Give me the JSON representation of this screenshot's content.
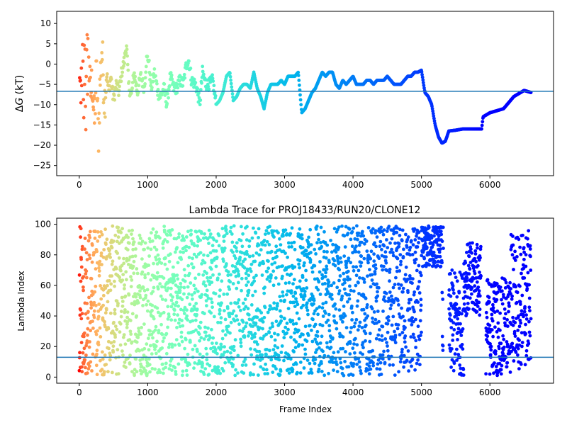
{
  "figure": {
    "background": "#ffffff",
    "colormap": "rainbow"
  },
  "chart_data": [
    {
      "type": "scatter",
      "title": "",
      "xlabel": "",
      "ylabel": "ΔG (kT)",
      "ylabel_italic_part": "G",
      "ylabel_prefix": "Δ",
      "ylabel_suffix": " (kT)",
      "xlim": [
        -330,
        6930
      ],
      "ylim": [
        -27.5,
        13
      ],
      "xticks": [
        0,
        1000,
        2000,
        3000,
        4000,
        5000,
        6000
      ],
      "yticks": [
        10,
        5,
        0,
        -5,
        -10,
        -15,
        -20,
        -25
      ],
      "hline": {
        "y": -6.7,
        "color": "#1f77b4"
      },
      "color_by": "frame index (red = early, purple = late)",
      "keypoints": [
        [
          0,
          11
        ],
        [
          20,
          -20
        ],
        [
          40,
          9
        ],
        [
          60,
          -15
        ],
        [
          80,
          5
        ],
        [
          100,
          -12
        ],
        [
          130,
          10
        ],
        [
          160,
          -8
        ],
        [
          190,
          -4
        ],
        [
          220,
          -15
        ],
        [
          250,
          -2
        ],
        [
          280,
          -18
        ],
        [
          300,
          -6
        ],
        [
          330,
          4
        ],
        [
          370,
          -9
        ],
        [
          400,
          -2
        ],
        [
          430,
          -7
        ],
        [
          460,
          -3
        ],
        [
          500,
          -9
        ],
        [
          540,
          -5
        ],
        [
          580,
          -7
        ],
        [
          620,
          -2
        ],
        [
          660,
          1
        ],
        [
          690,
          5
        ],
        [
          720,
          -5
        ],
        [
          760,
          -8
        ],
        [
          800,
          -2
        ],
        [
          850,
          -7
        ],
        [
          900,
          -3
        ],
        [
          950,
          -6
        ],
        [
          980,
          1
        ],
        [
          1010,
          1.5
        ],
        [
          1050,
          -6
        ],
        [
          1100,
          -2
        ],
        [
          1150,
          -7
        ],
        [
          1180,
          -8
        ],
        [
          1210,
          -7
        ],
        [
          1240,
          -6
        ],
        [
          1280,
          -10
        ],
        [
          1330,
          -3
        ],
        [
          1380,
          -6
        ],
        [
          1420,
          -6
        ],
        [
          1470,
          -4
        ],
        [
          1520,
          -5
        ],
        [
          1560,
          -0.5
        ],
        [
          1600,
          1
        ],
        [
          1640,
          -4
        ],
        [
          1700,
          -5
        ],
        [
          1730,
          -7
        ],
        [
          1760,
          -10
        ],
        [
          1800,
          -2
        ],
        [
          1850,
          -5
        ],
        [
          1900,
          -5
        ],
        [
          1950,
          -4
        ],
        [
          2000,
          -10
        ],
        [
          2050,
          -9
        ],
        [
          2100,
          -7
        ],
        [
          2150,
          -3
        ],
        [
          2200,
          -2
        ],
        [
          2250,
          -9
        ],
        [
          2300,
          -8
        ],
        [
          2350,
          -6
        ],
        [
          2400,
          -5
        ],
        [
          2450,
          -5
        ],
        [
          2500,
          -6
        ],
        [
          2550,
          -2
        ],
        [
          2600,
          -6
        ],
        [
          2650,
          -8
        ],
        [
          2700,
          -11
        ],
        [
          2750,
          -7
        ],
        [
          2800,
          -5
        ],
        [
          2850,
          -5
        ],
        [
          2900,
          -5
        ],
        [
          2950,
          -4
        ],
        [
          3000,
          -5
        ],
        [
          3050,
          -3
        ],
        [
          3100,
          -3
        ],
        [
          3150,
          -3
        ],
        [
          3200,
          -2
        ],
        [
          3250,
          -12
        ],
        [
          3300,
          -11
        ],
        [
          3350,
          -9
        ],
        [
          3400,
          -7
        ],
        [
          3450,
          -6
        ],
        [
          3500,
          -4
        ],
        [
          3550,
          -2
        ],
        [
          3600,
          -3
        ],
        [
          3650,
          -2
        ],
        [
          3700,
          -2
        ],
        [
          3750,
          -5
        ],
        [
          3800,
          -6
        ],
        [
          3850,
          -4
        ],
        [
          3900,
          -5
        ],
        [
          3950,
          -4
        ],
        [
          4000,
          -3
        ],
        [
          4050,
          -5
        ],
        [
          4100,
          -5
        ],
        [
          4150,
          -5
        ],
        [
          4200,
          -4
        ],
        [
          4250,
          -4
        ],
        [
          4300,
          -5
        ],
        [
          4350,
          -4
        ],
        [
          4400,
          -4
        ],
        [
          4450,
          -4
        ],
        [
          4500,
          -3
        ],
        [
          4550,
          -4
        ],
        [
          4600,
          -5
        ],
        [
          4650,
          -5
        ],
        [
          4700,
          -5
        ],
        [
          4750,
          -4
        ],
        [
          4800,
          -3
        ],
        [
          4850,
          -3
        ],
        [
          4900,
          -2
        ],
        [
          4950,
          -2
        ],
        [
          5000,
          -1.5
        ],
        [
          5050,
          -7
        ],
        [
          5100,
          -8
        ],
        [
          5150,
          -10
        ],
        [
          5200,
          -15
        ],
        [
          5250,
          -18
        ],
        [
          5300,
          -19.5
        ],
        [
          5350,
          -19
        ],
        [
          5400,
          -16.5
        ],
        [
          5500,
          -16.3
        ],
        [
          5600,
          -16
        ],
        [
          5700,
          -16
        ],
        [
          5800,
          -16
        ],
        [
          5880,
          -16
        ],
        [
          5900,
          -13
        ],
        [
          6000,
          -12
        ],
        [
          6100,
          -11.5
        ],
        [
          6200,
          -11
        ],
        [
          6250,
          -10
        ],
        [
          6300,
          -9
        ],
        [
          6350,
          -8
        ],
        [
          6400,
          -7.5
        ],
        [
          6450,
          -7
        ],
        [
          6500,
          -6.5
        ],
        [
          6560,
          -6.8
        ],
        [
          6600,
          -7
        ]
      ]
    },
    {
      "type": "scatter",
      "title": "Lambda Trace for PROJ18433/RUN20/CLONE12",
      "xlabel": "Frame Index",
      "ylabel": "Lambda Index",
      "xlim": [
        -330,
        6930
      ],
      "ylim": [
        -4,
        104
      ],
      "xticks": [
        0,
        1000,
        2000,
        3000,
        4000,
        5000,
        6000
      ],
      "yticks": [
        0,
        20,
        40,
        60,
        80,
        100
      ],
      "hline": {
        "y": 13,
        "color": "#1f77b4"
      },
      "color_by": "frame index (red = early, purple = late)",
      "n_frames": 6600,
      "value_range": [
        1,
        99
      ],
      "gaps": [
        {
          "x": [
            5320,
            5400
          ],
          "range": [
            0,
            0
          ]
        },
        {
          "x": [
            5870,
            5940
          ],
          "range": [
            0,
            0
          ]
        }
      ],
      "bands": [
        {
          "x": [
            5000,
            5300
          ],
          "range": [
            72,
            99
          ]
        },
        {
          "x": [
            5400,
            5620
          ],
          "range": [
            1,
            70
          ]
        },
        {
          "x": [
            5620,
            5870
          ],
          "range": [
            40,
            88
          ]
        },
        {
          "x": [
            5940,
            6300
          ],
          "range": [
            1,
            65
          ]
        },
        {
          "x": [
            6300,
            6600
          ],
          "range": [
            5,
            96
          ]
        }
      ]
    }
  ]
}
